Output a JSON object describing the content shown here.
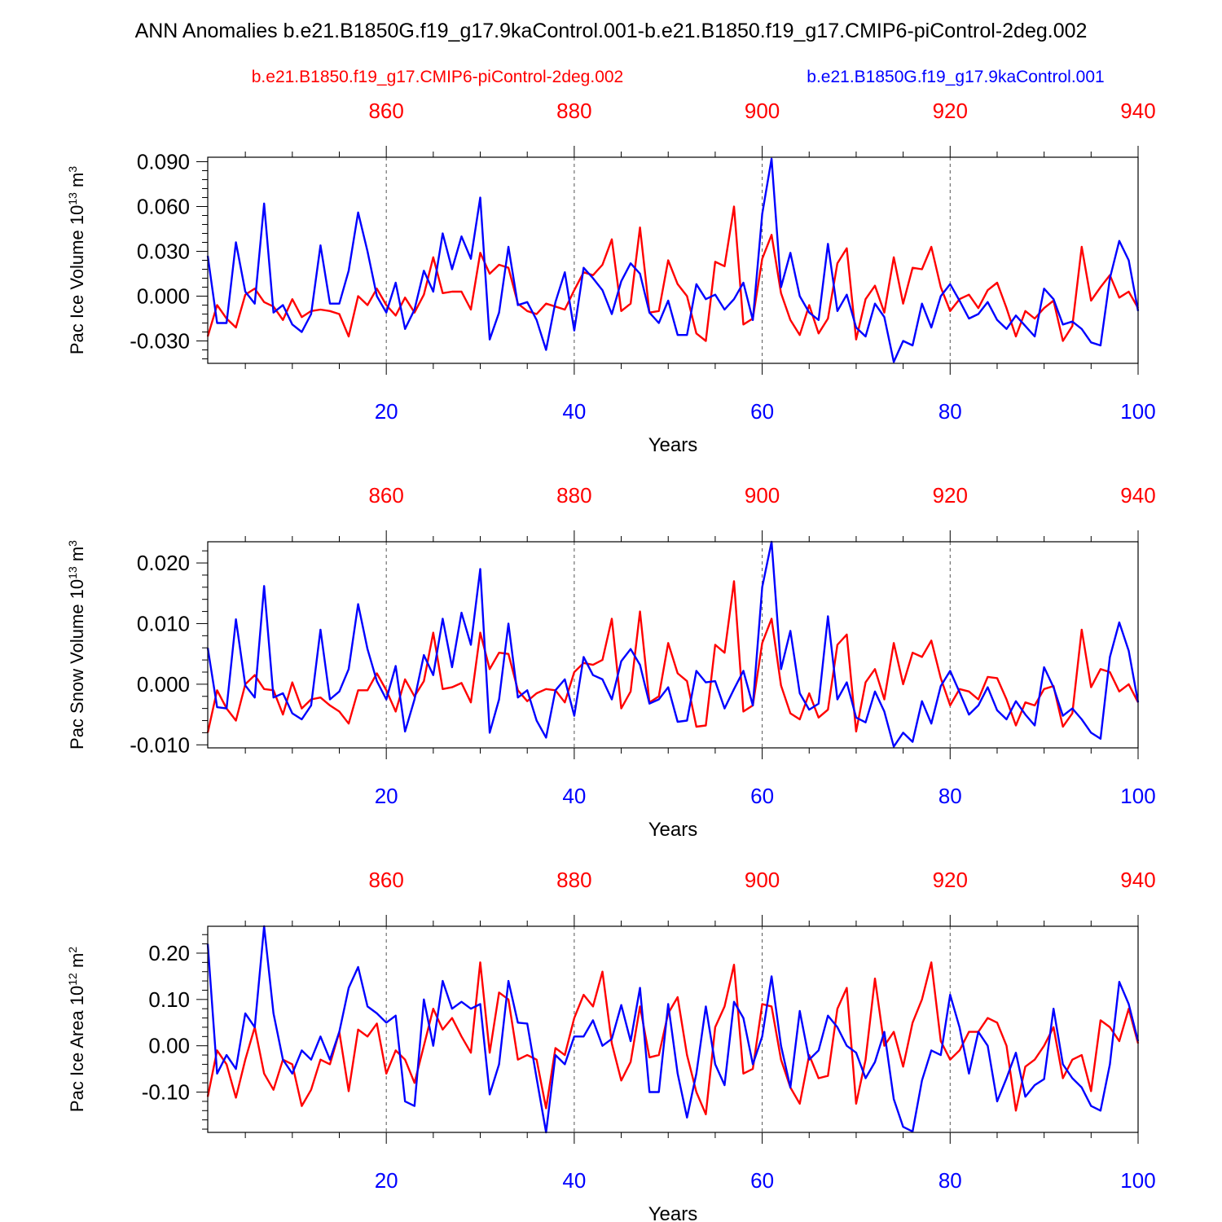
{
  "colors": {
    "red": "#ff0000",
    "blue": "#0000ff"
  },
  "figure": {
    "title": "ANN Anomalies b.e21.B1850G.f19_g17.9kaControl.001-b.e21.B1850.f19_g17.CMIP6-piControl-2deg.002",
    "legend_red": "b.e21.B1850.f19_g17.CMIP6-piControl-2deg.002",
    "legend_blue": "b.e21.B1850G.f19_g17.9kaControl.001"
  },
  "chart_data": [
    {
      "type": "line",
      "ylabel": "Pac Ice Volume 10",
      "ylabel_exp": "13",
      "ylabel_unit": " m",
      "ylabel_unit_exp": "3",
      "xlabel": "Years",
      "ylim": [
        -0.045,
        0.093
      ],
      "yticks": [
        -0.03,
        0.0,
        0.03,
        0.06,
        0.09
      ],
      "ytick_labels": [
        "-0.030",
        "0.000",
        "0.030",
        "0.060",
        "0.090"
      ],
      "yminor_step": 0.006,
      "xlim": [
        1,
        100
      ],
      "xticks": [
        20,
        40,
        60,
        80,
        100
      ],
      "xtick_labels": [
        "20",
        "40",
        "60",
        "80",
        "100"
      ],
      "top_xticks": [
        860,
        880,
        900,
        920,
        940
      ],
      "top_xtick_labels": [
        "860",
        "880",
        "900",
        "920",
        "940"
      ],
      "top_x_offset": 841,
      "series": [
        {
          "name": "b.e21.B1850.f19_g17.CMIP6-piControl-2deg.002",
          "color": "red",
          "values": [
            -0.027,
            -0.006,
            -0.015,
            -0.021,
            0.001,
            0.005,
            -0.004,
            -0.007,
            -0.016,
            -0.002,
            -0.014,
            -0.01,
            -0.009,
            -0.01,
            -0.012,
            -0.027,
            0.0,
            -0.006,
            0.005,
            -0.006,
            -0.013,
            -0.001,
            -0.011,
            0.001,
            0.026,
            0.002,
            0.003,
            0.003,
            -0.009,
            0.029,
            0.015,
            0.021,
            0.019,
            -0.005,
            -0.01,
            -0.012,
            -0.005,
            -0.007,
            -0.009,
            0.004,
            0.016,
            0.014,
            0.021,
            0.038,
            -0.01,
            -0.005,
            0.046,
            -0.011,
            -0.01,
            0.024,
            0.008,
            0.0,
            -0.025,
            -0.03,
            0.023,
            0.02,
            0.06,
            -0.019,
            -0.015,
            0.025,
            0.041,
            0.002,
            -0.016,
            -0.026,
            -0.006,
            -0.025,
            -0.015,
            0.022,
            0.032,
            -0.029,
            -0.002,
            0.007,
            -0.011,
            0.026,
            -0.005,
            0.019,
            0.018,
            0.033,
            0.006,
            -0.01,
            -0.002,
            0.001,
            -0.008,
            0.004,
            0.009,
            -0.008,
            -0.027,
            -0.01,
            -0.015,
            -0.008,
            -0.003,
            -0.03,
            -0.02,
            0.033,
            -0.003,
            0.006,
            0.014,
            -0.001,
            0.003,
            -0.008
          ]
        },
        {
          "name": "b.e21.B1850G.f19_g17.9kaControl.001",
          "color": "blue",
          "values": [
            0.027,
            -0.018,
            -0.018,
            0.036,
            0.003,
            -0.005,
            0.062,
            -0.011,
            -0.006,
            -0.019,
            -0.024,
            -0.012,
            0.034,
            -0.005,
            -0.005,
            0.017,
            0.056,
            0.03,
            0.0,
            -0.011,
            0.009,
            -0.022,
            -0.009,
            0.017,
            0.003,
            0.042,
            0.018,
            0.04,
            0.025,
            0.066,
            -0.029,
            -0.011,
            0.033,
            -0.006,
            -0.004,
            -0.016,
            -0.036,
            -0.004,
            0.016,
            -0.023,
            0.019,
            0.012,
            0.004,
            -0.012,
            0.01,
            0.022,
            0.015,
            -0.011,
            -0.018,
            -0.003,
            -0.026,
            -0.026,
            0.008,
            -0.002,
            0.001,
            -0.009,
            -0.002,
            0.009,
            -0.016,
            0.055,
            0.092,
            0.006,
            0.029,
            0.0,
            -0.011,
            -0.016,
            0.035,
            -0.01,
            0.001,
            -0.021,
            -0.027,
            -0.005,
            -0.014,
            -0.044,
            -0.03,
            -0.033,
            -0.005,
            -0.021,
            0.0,
            0.008,
            -0.003,
            -0.015,
            -0.012,
            -0.004,
            -0.016,
            -0.022,
            -0.013,
            -0.02,
            -0.027,
            0.005,
            -0.002,
            -0.019,
            -0.017,
            -0.022,
            -0.031,
            -0.033,
            0.012,
            0.037,
            0.024,
            -0.01
          ]
        }
      ]
    },
    {
      "type": "line",
      "ylabel": "Pac Snow Volume 10",
      "ylabel_exp": "13",
      "ylabel_unit": " m",
      "ylabel_unit_exp": "3",
      "xlabel": "Years",
      "ylim": [
        -0.0105,
        0.0235
      ],
      "yticks": [
        -0.01,
        0.0,
        0.01,
        0.02
      ],
      "ytick_labels": [
        "-0.010",
        "0.000",
        "0.010",
        "0.020"
      ],
      "yminor_step": 0.002,
      "xlim": [
        1,
        100
      ],
      "xticks": [
        20,
        40,
        60,
        80,
        100
      ],
      "xtick_labels": [
        "20",
        "40",
        "60",
        "80",
        "100"
      ],
      "top_xticks": [
        860,
        880,
        900,
        920,
        940
      ],
      "top_xtick_labels": [
        "860",
        "880",
        "900",
        "920",
        "940"
      ],
      "top_x_offset": 841,
      "series": [
        {
          "name": "b.e21.B1850.f19_g17.CMIP6-piControl-2deg.002",
          "color": "red",
          "values": [
            -0.008,
            -0.001,
            -0.004,
            -0.006,
            0.0,
            0.0015,
            -0.0008,
            -0.001,
            -0.005,
            0.0003,
            -0.004,
            -0.0025,
            -0.0022,
            -0.0035,
            -0.0045,
            -0.0065,
            -0.001,
            -0.001,
            0.0018,
            -0.001,
            -0.0045,
            0.0008,
            -0.002,
            0.0005,
            0.0085,
            -0.0008,
            -0.0005,
            0.0002,
            -0.003,
            0.0085,
            0.0025,
            0.0052,
            0.005,
            -0.001,
            -0.0028,
            -0.0015,
            -0.0008,
            -0.001,
            -0.003,
            0.002,
            0.0035,
            0.0032,
            0.004,
            0.0108,
            -0.004,
            -0.0012,
            0.012,
            -0.003,
            -0.002,
            0.0068,
            0.0018,
            0.0005,
            -0.007,
            -0.0068,
            0.0065,
            0.0052,
            0.017,
            -0.0045,
            -0.0035,
            0.0068,
            0.0108,
            -0.0002,
            -0.0048,
            -0.0058,
            -0.0015,
            -0.0055,
            -0.0042,
            0.0065,
            0.0082,
            -0.0078,
            0.0003,
            0.0025,
            -0.0025,
            0.0068,
            0.0,
            0.0052,
            0.0045,
            0.0072,
            0.001,
            -0.0035,
            -0.0008,
            -0.0012,
            -0.0025,
            0.0012,
            0.001,
            -0.0025,
            -0.0068,
            -0.003,
            -0.0035,
            -0.0008,
            -0.0003,
            -0.007,
            -0.0048,
            0.009,
            -0.0005,
            0.0025,
            0.002,
            -0.0012,
            0.0,
            -0.003
          ]
        },
        {
          "name": "b.e21.B1850G.f19_g17.9kaControl.001",
          "color": "blue",
          "values": [
            0.006,
            -0.0038,
            -0.004,
            0.0107,
            -0.0002,
            -0.0022,
            0.0162,
            -0.0022,
            -0.0015,
            -0.0048,
            -0.0058,
            -0.0035,
            0.009,
            -0.0025,
            -0.0012,
            0.0025,
            0.0132,
            0.0058,
            0.0005,
            -0.0025,
            0.003,
            -0.0078,
            -0.0025,
            0.0048,
            0.0015,
            0.0108,
            0.0028,
            0.0118,
            0.0065,
            0.019,
            -0.008,
            -0.0025,
            0.01,
            -0.0022,
            -0.001,
            -0.006,
            -0.0088,
            -0.001,
            0.0008,
            -0.0052,
            0.0045,
            0.0015,
            0.0008,
            -0.0025,
            0.0038,
            0.0058,
            0.0032,
            -0.0032,
            -0.0025,
            -0.0005,
            -0.0062,
            -0.006,
            0.0022,
            0.0003,
            0.0005,
            -0.004,
            -0.0008,
            0.0022,
            -0.0035,
            0.016,
            0.0235,
            0.0025,
            0.0088,
            -0.0015,
            -0.0042,
            -0.0032,
            0.0112,
            -0.0025,
            0.0003,
            -0.0055,
            -0.0063,
            -0.0012,
            -0.0045,
            -0.0103,
            -0.008,
            -0.0095,
            -0.0028,
            -0.0065,
            -0.0003,
            0.0022,
            -0.0013,
            -0.005,
            -0.0035,
            -0.0005,
            -0.0043,
            -0.0058,
            -0.0028,
            -0.005,
            -0.0068,
            0.0028,
            -0.0005,
            -0.0052,
            -0.004,
            -0.0058,
            -0.008,
            -0.009,
            0.0045,
            0.0102,
            0.0055,
            -0.003
          ]
        }
      ]
    },
    {
      "type": "line",
      "ylabel": "Pac Ice Area 10",
      "ylabel_exp": "12",
      "ylabel_unit": " m",
      "ylabel_unit_exp": "2",
      "xlabel": "Years",
      "ylim": [
        -0.187,
        0.258
      ],
      "yticks": [
        -0.1,
        0.0,
        0.1,
        0.2
      ],
      "ytick_labels": [
        "-0.10",
        "0.00",
        "0.10",
        "0.20"
      ],
      "yminor_step": 0.02,
      "xlim": [
        1,
        100
      ],
      "xticks": [
        20,
        40,
        60,
        80,
        100
      ],
      "xtick_labels": [
        "20",
        "40",
        "60",
        "80",
        "100"
      ],
      "top_xticks": [
        860,
        880,
        900,
        920,
        940
      ],
      "top_xtick_labels": [
        "860",
        "880",
        "900",
        "920",
        "940"
      ],
      "top_x_offset": 841,
      "series": [
        {
          "name": "b.e21.B1850.f19_g17.CMIP6-piControl-2deg.002",
          "color": "red",
          "values": [
            -0.11,
            -0.01,
            -0.04,
            -0.112,
            -0.03,
            0.04,
            -0.06,
            -0.095,
            -0.03,
            -0.04,
            -0.13,
            -0.095,
            -0.03,
            -0.04,
            0.03,
            -0.098,
            0.035,
            0.02,
            0.048,
            -0.06,
            -0.01,
            -0.03,
            -0.08,
            0.0,
            0.08,
            0.035,
            0.06,
            0.02,
            -0.015,
            0.18,
            -0.015,
            0.115,
            0.1,
            -0.03,
            -0.02,
            -0.03,
            -0.135,
            -0.005,
            -0.02,
            0.06,
            0.11,
            0.085,
            0.16,
            0.005,
            -0.075,
            -0.035,
            0.085,
            -0.025,
            -0.02,
            0.07,
            0.105,
            -0.02,
            -0.1,
            -0.148,
            0.04,
            0.085,
            0.175,
            -0.06,
            -0.05,
            0.09,
            0.085,
            -0.03,
            -0.09,
            -0.125,
            -0.02,
            -0.07,
            -0.065,
            0.08,
            0.125,
            -0.125,
            -0.03,
            0.145,
            0.0,
            0.03,
            -0.045,
            0.05,
            0.1,
            0.18,
            0.01,
            -0.03,
            -0.01,
            0.03,
            0.03,
            0.06,
            0.05,
            0.0,
            -0.14,
            -0.045,
            -0.03,
            0.0,
            0.04,
            -0.07,
            -0.03,
            -0.02,
            -0.098,
            0.055,
            0.04,
            0.01,
            0.08,
            0.005
          ]
        },
        {
          "name": "b.e21.B1850G.f19_g17.9kaControl.001",
          "color": "blue",
          "values": [
            0.22,
            -0.06,
            -0.02,
            -0.05,
            0.07,
            0.04,
            0.258,
            0.07,
            -0.03,
            -0.06,
            -0.01,
            -0.03,
            0.02,
            -0.03,
            0.03,
            0.125,
            0.17,
            0.085,
            0.07,
            0.05,
            0.065,
            -0.12,
            -0.13,
            0.1,
            0.0,
            0.14,
            0.08,
            0.095,
            0.08,
            0.09,
            -0.105,
            -0.04,
            0.14,
            0.05,
            0.048,
            -0.07,
            -0.187,
            -0.02,
            -0.04,
            0.02,
            0.02,
            0.055,
            0.0,
            0.015,
            0.088,
            0.01,
            0.125,
            -0.1,
            -0.1,
            0.09,
            -0.06,
            -0.155,
            -0.06,
            0.085,
            -0.04,
            -0.085,
            0.095,
            0.06,
            -0.04,
            0.02,
            0.15,
            0.0,
            -0.09,
            0.075,
            -0.03,
            -0.01,
            0.065,
            0.04,
            0.0,
            -0.015,
            -0.07,
            -0.035,
            0.03,
            -0.115,
            -0.175,
            -0.185,
            -0.075,
            -0.01,
            -0.02,
            0.11,
            0.04,
            -0.06,
            0.03,
            0.0,
            -0.12,
            -0.07,
            -0.015,
            -0.11,
            -0.085,
            -0.072,
            0.08,
            -0.04,
            -0.07,
            -0.09,
            -0.13,
            -0.14,
            -0.04,
            0.138,
            0.09,
            0.01
          ]
        }
      ]
    }
  ]
}
